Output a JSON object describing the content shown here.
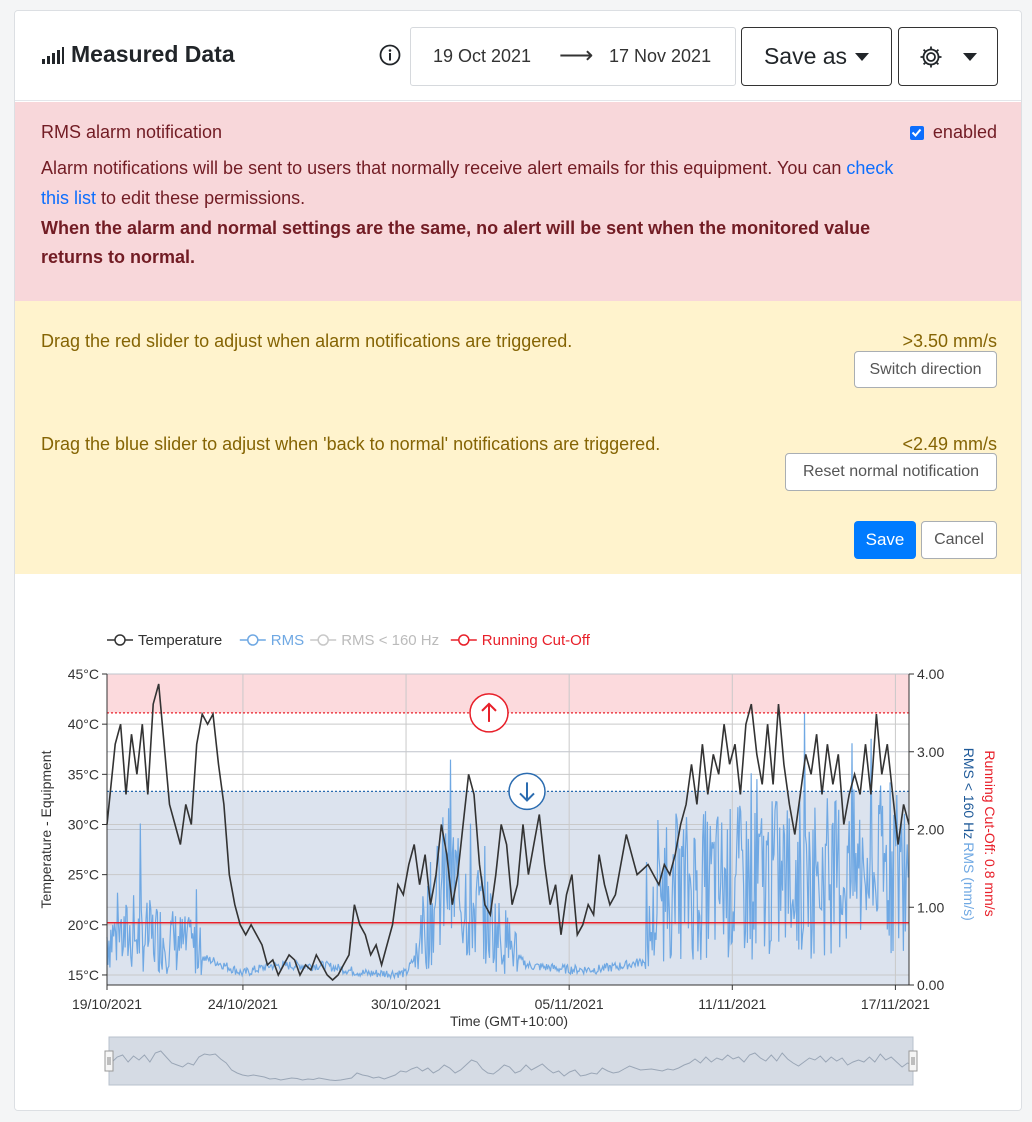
{
  "header": {
    "title": "Measured Data",
    "date_from": "19 Oct 2021",
    "arrow": "⟶",
    "date_to": "17 Nov 2021",
    "save_as_label": "Save as"
  },
  "alarm": {
    "heading": "RMS alarm notification",
    "enabled_label": "enabled",
    "enabled": true,
    "message_pre": "Alarm notifications will be sent to users that normally receive alert emails for this equipment. You can ",
    "message_link": "check this list",
    "message_post": " to edit these permissions.",
    "bold_note": "When the alarm and normal settings are the same, no alert will be sent when the monitored value returns to normal."
  },
  "sliders": {
    "red_text": "Drag the red slider to adjust when alarm notifications are triggered.",
    "red_value": ">3.50 mm/s",
    "switch_label": "Switch direction",
    "blue_text": "Drag the blue slider to adjust when 'back to normal' notifications are triggered.",
    "blue_value": "<2.49 mm/s",
    "reset_label": "Reset normal notification",
    "save_label": "Save",
    "cancel_label": "Cancel"
  },
  "colors": {
    "alarm_bg": "#f8d7da",
    "slider_bg": "#fff3cd",
    "primary": "#007bff",
    "temperature": "#333333",
    "rms": "#6fa8e3",
    "rms160": "#c8c8c8",
    "cutoff": "#e8202a"
  },
  "chart_data": {
    "type": "line",
    "legend": [
      {
        "name": "Temperature",
        "color": "#333333"
      },
      {
        "name": "RMS",
        "color": "#6fa8e3"
      },
      {
        "name": "RMS < 160 Hz",
        "color": "#c8c8c8"
      },
      {
        "name": "Running Cut-Off",
        "color": "#e8202a"
      }
    ],
    "xlabel": "Time (GMT+10:00)",
    "ylabel_left": "Temperature - Equipment",
    "ylabel_right_1": "RMS (mm/s)",
    "ylabel_right_2": "RMS < 160 Hz",
    "ylabel_right_3": "Running Cut-Off: 0.8 mm/s",
    "x_ticks": [
      "19/10/2021",
      "24/10/2021",
      "30/10/2021",
      "05/11/2021",
      "11/11/2021",
      "17/11/2021"
    ],
    "y_left_ticks": [
      "45°C",
      "40°C",
      "35°C",
      "30°C",
      "25°C",
      "20°C",
      "15°C"
    ],
    "y_right_ticks": [
      "4.00",
      "3.00",
      "2.00",
      "1.00",
      "0.00"
    ],
    "y_left_range": [
      14,
      45
    ],
    "y_right_range": [
      0,
      4
    ],
    "x_range_days": [
      0,
      29.5
    ],
    "alarm_threshold": 3.5,
    "normal_threshold": 2.49,
    "cutoff": 0.8,
    "temperature": [
      [
        0,
        30
      ],
      [
        0.3,
        38
      ],
      [
        0.5,
        40
      ],
      [
        0.7,
        33
      ],
      [
        0.9,
        39
      ],
      [
        1.1,
        35
      ],
      [
        1.3,
        40
      ],
      [
        1.5,
        33
      ],
      [
        1.7,
        42
      ],
      [
        1.9,
        44
      ],
      [
        2.1,
        38
      ],
      [
        2.3,
        32
      ],
      [
        2.5,
        30
      ],
      [
        2.7,
        28
      ],
      [
        2.9,
        32
      ],
      [
        3.1,
        30
      ],
      [
        3.3,
        38
      ],
      [
        3.5,
        41
      ],
      [
        3.7,
        40
      ],
      [
        3.9,
        41
      ],
      [
        4.1,
        36
      ],
      [
        4.3,
        32
      ],
      [
        4.5,
        25
      ],
      [
        4.7,
        22
      ],
      [
        4.9,
        20
      ],
      [
        5.1,
        19
      ],
      [
        5.3,
        20
      ],
      [
        5.5,
        19
      ],
      [
        5.7,
        18
      ],
      [
        5.9,
        16
      ],
      [
        6.1,
        16.5
      ],
      [
        6.3,
        15
      ],
      [
        6.5,
        16
      ],
      [
        6.7,
        17
      ],
      [
        6.9,
        16.5
      ],
      [
        7.1,
        15
      ],
      [
        7.3,
        16
      ],
      [
        7.5,
        15.5
      ],
      [
        7.7,
        17
      ],
      [
        7.9,
        16
      ],
      [
        8.1,
        15
      ],
      [
        8.3,
        14.5
      ],
      [
        8.5,
        15
      ],
      [
        8.7,
        16
      ],
      [
        8.9,
        17
      ],
      [
        9.1,
        22
      ],
      [
        9.3,
        20
      ],
      [
        9.5,
        19
      ],
      [
        9.7,
        17
      ],
      [
        9.9,
        18
      ],
      [
        10.1,
        16
      ],
      [
        10.3,
        18
      ],
      [
        10.5,
        20
      ],
      [
        10.7,
        24
      ],
      [
        10.9,
        23
      ],
      [
        11.1,
        26
      ],
      [
        11.3,
        28
      ],
      [
        11.5,
        24
      ],
      [
        11.7,
        27
      ],
      [
        11.9,
        22
      ],
      [
        12.1,
        25
      ],
      [
        12.3,
        30
      ],
      [
        12.5,
        27
      ],
      [
        12.7,
        22
      ],
      [
        12.9,
        25
      ],
      [
        13.1,
        30
      ],
      [
        13.3,
        35
      ],
      [
        13.5,
        33
      ],
      [
        13.7,
        26
      ],
      [
        13.9,
        22
      ],
      [
        14.1,
        21
      ],
      [
        14.3,
        25
      ],
      [
        14.5,
        30
      ],
      [
        14.7,
        28
      ],
      [
        14.9,
        22
      ],
      [
        15.1,
        24
      ],
      [
        15.3,
        30
      ],
      [
        15.5,
        25
      ],
      [
        15.7,
        28
      ],
      [
        15.9,
        31
      ],
      [
        16.1,
        26
      ],
      [
        16.3,
        22
      ],
      [
        16.5,
        24
      ],
      [
        16.7,
        19
      ],
      [
        16.9,
        23
      ],
      [
        17.1,
        25
      ],
      [
        17.3,
        19
      ],
      [
        17.5,
        20
      ],
      [
        17.7,
        22
      ],
      [
        17.9,
        21
      ],
      [
        18.1,
        27
      ],
      [
        18.3,
        24
      ],
      [
        18.5,
        22
      ],
      [
        18.7,
        23
      ],
      [
        18.9,
        26
      ],
      [
        19.1,
        29
      ],
      [
        19.3,
        27
      ],
      [
        19.5,
        25
      ],
      [
        19.7,
        25.5
      ],
      [
        19.9,
        26
      ],
      [
        20.1,
        25
      ],
      [
        20.3,
        24
      ],
      [
        20.5,
        26
      ],
      [
        20.7,
        25
      ],
      [
        20.9,
        27
      ],
      [
        21.1,
        30
      ],
      [
        21.3,
        32
      ],
      [
        21.5,
        36
      ],
      [
        21.7,
        32
      ],
      [
        21.9,
        38
      ],
      [
        22.1,
        33
      ],
      [
        22.3,
        37
      ],
      [
        22.5,
        35
      ],
      [
        22.7,
        40
      ],
      [
        22.9,
        36
      ],
      [
        23.1,
        38
      ],
      [
        23.3,
        33
      ],
      [
        23.5,
        40
      ],
      [
        23.7,
        42
      ],
      [
        23.9,
        37
      ],
      [
        24.1,
        34
      ],
      [
        24.3,
        40
      ],
      [
        24.5,
        34
      ],
      [
        24.7,
        42
      ],
      [
        24.9,
        36
      ],
      [
        25.1,
        32
      ],
      [
        25.3,
        29
      ],
      [
        25.5,
        33
      ],
      [
        25.7,
        37
      ],
      [
        25.9,
        35
      ],
      [
        26.1,
        39
      ],
      [
        26.3,
        33
      ],
      [
        26.5,
        38
      ],
      [
        26.7,
        34
      ],
      [
        26.9,
        37
      ],
      [
        27.1,
        30
      ],
      [
        27.3,
        33
      ],
      [
        27.5,
        35
      ],
      [
        27.7,
        33
      ],
      [
        27.9,
        38
      ],
      [
        28.1,
        33
      ],
      [
        28.3,
        41
      ],
      [
        28.5,
        35
      ],
      [
        28.7,
        38
      ],
      [
        28.9,
        33
      ],
      [
        29.1,
        28
      ],
      [
        29.3,
        32
      ],
      [
        29.5,
        30
      ]
    ],
    "rms_mean": [
      [
        0,
        0.5
      ],
      [
        2,
        0.5
      ],
      [
        4,
        0.3
      ],
      [
        5,
        0.15
      ],
      [
        6,
        0.25
      ],
      [
        8,
        0.25
      ],
      [
        9.5,
        0.15
      ],
      [
        11,
        0.15
      ],
      [
        12.5,
        1.1
      ],
      [
        13.5,
        0.8
      ],
      [
        14.5,
        0.5
      ],
      [
        15.5,
        0.25
      ],
      [
        17,
        0.2
      ],
      [
        18,
        0.2
      ],
      [
        19,
        0.25
      ],
      [
        19.7,
        0.3
      ],
      [
        20.5,
        1.0
      ],
      [
        29.5,
        1.2
      ]
    ]
  }
}
